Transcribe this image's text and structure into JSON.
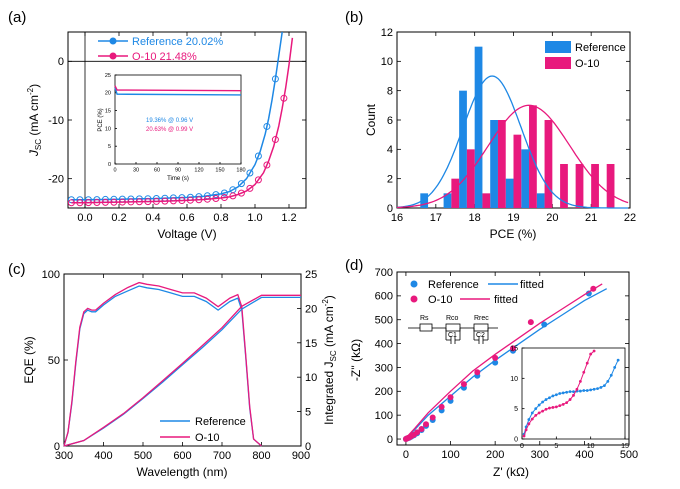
{
  "figure": {
    "panels": [
      {
        "letter": "(a)",
        "xlabel": "Voltage (V)",
        "ylabel_main": "J",
        "ylabel_sub": "SC",
        "ylabel_rest": " (mA cm",
        "ylabel_sup": "-2",
        "ylabel_end": ")",
        "inset": {
          "xlabel": "Time (s)",
          "ylabel": "PCE (%)",
          "annotations": [
            "19.36% @ 0.96 V",
            "20.63% @ 0.99 V"
          ]
        }
      },
      {
        "letter": "(b)",
        "xlabel": "PCE (%)",
        "ylabel": "Count"
      },
      {
        "letter": "(c)",
        "xlabel": "Wavelength (nm)",
        "ylabel": "EQE (%)",
        "ylabel2_main": "Integrated J",
        "ylabel2_sub": "SC",
        "ylabel2_rest": " (mA cm",
        "ylabel2_sup": "-2",
        "ylabel2_end": ")"
      },
      {
        "letter": "(d)",
        "xlabel": "Z' (kΩ)",
        "ylabel": "-Z'' (kΩ)",
        "circuit": {
          "labels": [
            "Rs",
            "Rco",
            "C1",
            "Rrec",
            "C2"
          ]
        }
      }
    ]
  },
  "colors": {
    "reference": "#1e88e5",
    "o10": "#e8197d",
    "axis": "#000000"
  },
  "chart_data": [
    {
      "type": "line",
      "panel": "(a)",
      "xlabel": "Voltage (V)",
      "ylabel": "JSC (mA cm-2)",
      "xlim": [
        -0.1,
        1.3
      ],
      "ylim": [
        -25,
        5
      ],
      "xticks": [
        0.0,
        0.2,
        0.4,
        0.6,
        0.8,
        1.0,
        1.2
      ],
      "yticks": [
        -20,
        -10,
        0
      ],
      "series": [
        {
          "name": "Reference 20.02%",
          "x": [
            -0.08,
            0.0,
            0.1,
            0.2,
            0.3,
            0.4,
            0.5,
            0.6,
            0.7,
            0.8,
            0.85,
            0.9,
            0.95,
            1.0,
            1.03,
            1.06,
            1.08,
            1.1,
            1.12,
            1.14,
            1.16
          ],
          "y": [
            -23.6,
            -23.6,
            -23.55,
            -23.5,
            -23.45,
            -23.4,
            -23.3,
            -23.2,
            -23.0,
            -22.6,
            -22.2,
            -21.4,
            -20.0,
            -17.6,
            -15.4,
            -12.4,
            -9.8,
            -6.6,
            -3.0,
            1.0,
            5.0
          ]
        },
        {
          "name": "O-10 21.48%",
          "x": [
            -0.08,
            0.0,
            0.1,
            0.2,
            0.3,
            0.4,
            0.5,
            0.6,
            0.7,
            0.8,
            0.85,
            0.9,
            0.95,
            1.0,
            1.05,
            1.08,
            1.11,
            1.14,
            1.16,
            1.18,
            1.2,
            1.22
          ],
          "y": [
            -24.1,
            -24.1,
            -24.05,
            -24.0,
            -23.95,
            -23.9,
            -23.8,
            -23.7,
            -23.55,
            -23.3,
            -23.1,
            -22.7,
            -22.1,
            -21.0,
            -19.0,
            -17.0,
            -14.5,
            -11.0,
            -8.0,
            -4.6,
            -0.6,
            4.0
          ]
        }
      ]
    },
    {
      "type": "line",
      "panel": "(a) inset",
      "xlabel": "Time (s)",
      "ylabel": "PCE (%)",
      "xlim": [
        0,
        180
      ],
      "ylim": [
        0,
        25
      ],
      "xticks": [
        0,
        30,
        60,
        90,
        120,
        150,
        180
      ],
      "yticks": [
        0,
        5,
        10,
        15,
        20,
        25
      ],
      "series": [
        {
          "name": "19.36% @ 0.96 V",
          "x": [
            0,
            3,
            180
          ],
          "y": [
            21.5,
            19.6,
            19.4
          ]
        },
        {
          "name": "20.63% @ 0.99 V",
          "x": [
            0,
            3,
            180
          ],
          "y": [
            22.0,
            20.8,
            20.6
          ]
        }
      ]
    },
    {
      "type": "bar",
      "panel": "(b)",
      "xlabel": "PCE (%)",
      "ylabel": "Count",
      "xlim": [
        16,
        22
      ],
      "ylim": [
        0,
        12
      ],
      "xticks": [
        16,
        17,
        18,
        19,
        20,
        21,
        22
      ],
      "yticks": [
        0,
        2,
        4,
        6,
        8,
        10,
        12
      ],
      "legend": "top-right",
      "series": [
        {
          "name": "Reference",
          "x": [
            16.7,
            17.3,
            17.7,
            18.1,
            18.5,
            18.9,
            19.3,
            19.7
          ],
          "values": [
            1,
            1,
            8,
            11,
            6,
            2,
            4,
            1
          ],
          "fit": {
            "mean": 18.45,
            "sd": 0.75,
            "peak": 9.0
          }
        },
        {
          "name": "O-10",
          "x": [
            17.5,
            17.9,
            18.3,
            18.7,
            19.1,
            19.5,
            19.9,
            20.3,
            20.7,
            21.1,
            21.5
          ],
          "values": [
            2,
            4,
            1,
            6,
            5,
            7,
            6,
            3,
            3,
            3,
            3
          ],
          "fit": {
            "mean": 19.4,
            "sd": 1.05,
            "peak": 7.0
          }
        }
      ]
    },
    {
      "type": "line",
      "panel": "(c)",
      "xlabel": "Wavelength (nm)",
      "ylabel": "EQE (%)",
      "y2label": "Integrated JSC (mA cm-2)",
      "xlim": [
        300,
        900
      ],
      "ylim": [
        0,
        100
      ],
      "y2lim": [
        0,
        25
      ],
      "xticks": [
        300,
        400,
        500,
        600,
        700,
        800,
        900
      ],
      "yticks": [
        0,
        50,
        100
      ],
      "y2ticks": [
        0,
        5,
        10,
        15,
        20,
        25
      ],
      "legend": "bottom-right",
      "series": [
        {
          "name": "Reference",
          "axis": "EQE",
          "x": [
            300,
            310,
            320,
            330,
            340,
            350,
            360,
            370,
            380,
            400,
            430,
            460,
            490,
            510,
            540,
            570,
            600,
            630,
            660,
            690,
            720,
            740,
            750,
            760,
            770,
            780,
            800
          ],
          "y": [
            0,
            8,
            25,
            48,
            68,
            77,
            79,
            78,
            78,
            82,
            87,
            90,
            93,
            92,
            91,
            89,
            87,
            87,
            84,
            79,
            84,
            86,
            79,
            52,
            22,
            4,
            0
          ]
        },
        {
          "name": "O-10",
          "axis": "EQE",
          "x": [
            300,
            310,
            320,
            330,
            340,
            350,
            360,
            370,
            380,
            400,
            430,
            460,
            490,
            510,
            540,
            570,
            600,
            630,
            660,
            690,
            720,
            740,
            750,
            760,
            770,
            780,
            800
          ],
          "y": [
            0,
            8,
            26,
            49,
            69,
            78,
            80,
            79,
            79,
            83,
            88,
            92,
            95,
            94,
            93,
            91,
            89,
            89,
            86,
            81,
            86,
            88,
            81,
            53,
            23,
            4,
            0
          ]
        },
        {
          "name": "Reference integrated",
          "axis": "Integrated JSC",
          "x": [
            300,
            350,
            400,
            450,
            500,
            550,
            600,
            650,
            700,
            750,
            800,
            900
          ],
          "y": [
            0,
            0.8,
            2.6,
            4.6,
            6.9,
            9.3,
            11.8,
            14.3,
            16.9,
            19.9,
            21.6,
            21.6
          ]
        },
        {
          "name": "O-10 integrated",
          "axis": "Integrated JSC",
          "x": [
            300,
            350,
            400,
            450,
            500,
            550,
            600,
            650,
            700,
            750,
            800,
            900
          ],
          "y": [
            0,
            0.8,
            2.7,
            4.7,
            7.0,
            9.5,
            12.0,
            14.6,
            17.2,
            20.3,
            21.9,
            21.9
          ]
        }
      ]
    },
    {
      "type": "scatter",
      "panel": "(d)",
      "xlabel": "Z' (kΩ)",
      "ylabel": "-Z'' (kΩ)",
      "xlim": [
        -20,
        500
      ],
      "ylim": [
        -25,
        700
      ],
      "xticks": [
        0,
        100,
        200,
        300,
        400,
        500
      ],
      "yticks": [
        0,
        100,
        200,
        300,
        400,
        500,
        600,
        700
      ],
      "legend": "top-left",
      "series": [
        {
          "name": "Reference",
          "x": [
            0,
            2,
            5,
            8,
            12,
            18,
            25,
            35,
            45,
            60,
            80,
            100,
            130,
            160,
            200,
            240,
            310,
            410
          ],
          "y": [
            0,
            2,
            4,
            6,
            10,
            16,
            24,
            38,
            55,
            80,
            120,
            160,
            215,
            265,
            320,
            370,
            480,
            610
          ]
        },
        {
          "name": "fitted",
          "of": "Reference",
          "x": [
            -2,
            20,
            50,
            100,
            150,
            200,
            250,
            300,
            350,
            400,
            450
          ],
          "y": [
            0,
            40,
            100,
            180,
            260,
            330,
            395,
            460,
            520,
            580,
            630
          ]
        },
        {
          "name": "O-10",
          "x": [
            0,
            2,
            5,
            8,
            12,
            18,
            25,
            35,
            45,
            60,
            80,
            100,
            130,
            160,
            200,
            240,
            280,
            420
          ],
          "y": [
            0,
            2,
            5,
            7,
            12,
            18,
            28,
            42,
            62,
            90,
            135,
            175,
            230,
            280,
            340,
            380,
            490,
            630
          ]
        },
        {
          "name": "fitted",
          "of": "O-10",
          "x": [
            -2,
            20,
            50,
            100,
            150,
            200,
            250,
            300,
            350,
            400,
            440
          ],
          "y": [
            0,
            45,
            110,
            200,
            285,
            355,
            420,
            485,
            545,
            605,
            650
          ]
        }
      ]
    },
    {
      "type": "scatter",
      "panel": "(d) inset",
      "xlim": [
        0,
        15
      ],
      "ylim": [
        0,
        15
      ],
      "xticks": [
        0,
        5,
        10,
        15
      ],
      "yticks": [
        0,
        5,
        10,
        15
      ],
      "series": [
        {
          "name": "Reference",
          "x": [
            0.3,
            0.6,
            1,
            1.5,
            2,
            2.5,
            3,
            3.5,
            4,
            4.5,
            5,
            5.5,
            6,
            6.5,
            7,
            7.5,
            8,
            8.5,
            9,
            9.5,
            10,
            10.5,
            11,
            11.5,
            12,
            12.5,
            13,
            13.5,
            14
          ],
          "y": [
            0.8,
            2.0,
            3.2,
            4.3,
            5.0,
            5.6,
            6.1,
            6.5,
            6.8,
            7.1,
            7.3,
            7.5,
            7.6,
            7.7,
            7.8,
            7.8,
            7.9,
            7.9,
            8.0,
            8.0,
            8.1,
            8.2,
            8.3,
            8.5,
            8.8,
            9.5,
            10.5,
            11.8,
            13.0
          ]
        },
        {
          "name": "O-10",
          "x": [
            0.3,
            0.6,
            1,
            1.5,
            2,
            2.5,
            3,
            3.5,
            4,
            4.5,
            5,
            5.5,
            6,
            6.5,
            7,
            7.5,
            8,
            8.5,
            9,
            9.5,
            10,
            10.5
          ],
          "y": [
            0.5,
            1.5,
            2.5,
            3.3,
            3.9,
            4.3,
            4.6,
            4.9,
            5.1,
            5.2,
            5.3,
            5.5,
            5.7,
            6.0,
            6.5,
            7.2,
            8.2,
            9.5,
            11.0,
            12.5,
            14.0,
            14.5
          ]
        }
      ]
    }
  ],
  "legend_labels": {
    "a": [
      "Reference 20.02%",
      "O-10 21.48%"
    ],
    "b": [
      "Reference",
      "O-10"
    ],
    "c": [
      "Reference",
      "O-10"
    ],
    "d": [
      "Reference",
      "fitted",
      "O-10",
      "fitted"
    ]
  }
}
